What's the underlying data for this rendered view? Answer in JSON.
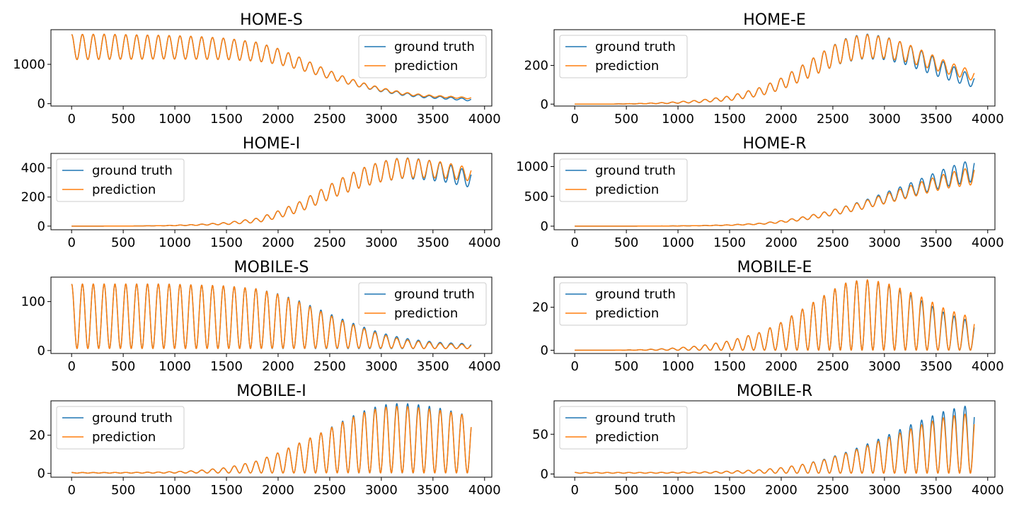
{
  "colors": {
    "ground_truth": "#1f77b4",
    "prediction": "#ff7f0e"
  },
  "chart_data": [
    {
      "type": "line",
      "title": "HOME-S",
      "xlim": [
        -200,
        4070
      ],
      "ylim": [
        -60,
        1880
      ],
      "xticks": [
        0,
        500,
        1000,
        1500,
        2000,
        2500,
        3000,
        3500,
        4000
      ],
      "yticks": [
        0,
        1000
      ],
      "legend": "top-right",
      "x": [
        0,
        300,
        600,
        900,
        1200,
        1500,
        1800,
        2000,
        2200,
        2400,
        2600,
        2800,
        3000,
        3200,
        3400,
        3600,
        3870
      ],
      "series": [
        {
          "name": "ground truth",
          "trend": [
            1440,
            1445,
            1440,
            1435,
            1420,
            1390,
            1320,
            1200,
            1030,
            830,
            640,
            480,
            350,
            250,
            185,
            150,
            95
          ],
          "amplitude": [
            320,
            320,
            310,
            300,
            290,
            270,
            240,
            200,
            160,
            120,
            90,
            65,
            48,
            38,
            32,
            30,
            28
          ]
        },
        {
          "name": "prediction",
          "trend": [
            1440,
            1445,
            1440,
            1435,
            1420,
            1390,
            1320,
            1200,
            1030,
            830,
            640,
            485,
            360,
            265,
            205,
            175,
            140
          ],
          "amplitude": [
            320,
            320,
            310,
            300,
            290,
            270,
            240,
            200,
            160,
            120,
            90,
            65,
            46,
            34,
            26,
            22,
            18
          ]
        }
      ]
    },
    {
      "type": "line",
      "title": "HOME-E",
      "xlim": [
        -200,
        4070
      ],
      "ylim": [
        -10,
        385
      ],
      "xticks": [
        0,
        500,
        1000,
        1500,
        2000,
        2500,
        3000,
        3500,
        4000
      ],
      "yticks": [
        0,
        200
      ],
      "legend": "top-left",
      "x": [
        0,
        300,
        600,
        900,
        1200,
        1500,
        1800,
        2000,
        2200,
        2400,
        2600,
        2800,
        3000,
        3200,
        3400,
        3600,
        3870
      ],
      "series": [
        {
          "name": "ground truth",
          "trend": [
            0,
            0,
            2,
            6,
            14,
            30,
            65,
            105,
            160,
            220,
            275,
            300,
            290,
            260,
            215,
            170,
            115
          ],
          "amplitude": [
            0,
            0,
            1,
            3,
            6,
            12,
            22,
            30,
            40,
            50,
            60,
            65,
            60,
            55,
            50,
            42,
            30
          ]
        },
        {
          "name": "prediction",
          "trend": [
            0,
            0,
            2,
            6,
            14,
            30,
            65,
            105,
            160,
            220,
            275,
            300,
            292,
            268,
            230,
            190,
            145
          ],
          "amplitude": [
            0,
            0,
            1,
            3,
            6,
            12,
            22,
            30,
            40,
            50,
            58,
            62,
            55,
            48,
            40,
            32,
            25
          ]
        }
      ]
    },
    {
      "type": "line",
      "title": "HOME-I",
      "xlim": [
        -200,
        4070
      ],
      "ylim": [
        -25,
        500
      ],
      "xticks": [
        0,
        500,
        1000,
        1500,
        2000,
        2500,
        3000,
        3500,
        4000
      ],
      "yticks": [
        0,
        200,
        400
      ],
      "legend": "top-left",
      "x": [
        0,
        300,
        600,
        900,
        1200,
        1500,
        1800,
        2000,
        2200,
        2400,
        2600,
        2800,
        3000,
        3200,
        3400,
        3600,
        3870
      ],
      "series": [
        {
          "name": "ground truth",
          "trend": [
            0,
            0,
            1,
            3,
            8,
            18,
            40,
            80,
            130,
            200,
            270,
            330,
            375,
            400,
            390,
            370,
            320
          ],
          "amplitude": [
            0,
            0,
            0,
            1,
            3,
            7,
            15,
            25,
            35,
            45,
            55,
            65,
            70,
            72,
            70,
            65,
            55
          ]
        },
        {
          "name": "prediction",
          "trend": [
            0,
            0,
            1,
            3,
            8,
            18,
            40,
            80,
            130,
            200,
            270,
            330,
            375,
            400,
            395,
            385,
            355
          ],
          "amplitude": [
            0,
            0,
            0,
            1,
            3,
            7,
            15,
            25,
            35,
            45,
            55,
            65,
            70,
            70,
            62,
            55,
            45
          ]
        }
      ]
    },
    {
      "type": "line",
      "title": "HOME-R",
      "xlim": [
        -200,
        4070
      ],
      "ylim": [
        -60,
        1220
      ],
      "xticks": [
        0,
        500,
        1000,
        1500,
        2000,
        2500,
        3000,
        3500,
        4000
      ],
      "yticks": [
        0,
        500,
        1000
      ],
      "legend": "top-left",
      "x": [
        0,
        300,
        600,
        900,
        1200,
        1500,
        1800,
        2000,
        2200,
        2400,
        2600,
        2800,
        3000,
        3200,
        3400,
        3600,
        3870
      ],
      "series": [
        {
          "name": "ground truth",
          "trend": [
            0,
            0,
            1,
            3,
            8,
            18,
            40,
            75,
            125,
            190,
            270,
            360,
            470,
            580,
            700,
            820,
            940
          ],
          "amplitude": [
            0,
            0,
            0,
            1,
            2,
            5,
            10,
            18,
            28,
            40,
            55,
            70,
            90,
            110,
            130,
            155,
            190
          ]
        },
        {
          "name": "prediction",
          "trend": [
            0,
            0,
            1,
            3,
            8,
            18,
            40,
            75,
            125,
            190,
            270,
            355,
            455,
            555,
            660,
            760,
            850
          ],
          "amplitude": [
            0,
            0,
            0,
            1,
            2,
            5,
            10,
            18,
            28,
            40,
            52,
            65,
            80,
            95,
            110,
            125,
            150
          ]
        }
      ]
    },
    {
      "type": "line",
      "title": "MOBILE-S",
      "xlim": [
        -200,
        4070
      ],
      "ylim": [
        -6,
        150
      ],
      "xticks": [
        0,
        500,
        1000,
        1500,
        2000,
        2500,
        3000,
        3500,
        4000
      ],
      "yticks": [
        0,
        100
      ],
      "legend": "top-right",
      "x": [
        0,
        300,
        600,
        900,
        1200,
        1500,
        1800,
        2000,
        2200,
        2400,
        2600,
        2800,
        3000,
        3200,
        3400,
        3600,
        3870
      ],
      "series": [
        {
          "name": "ground truth",
          "trend": [
            70,
            70,
            70,
            70,
            69,
            68,
            65,
            60,
            53,
            44,
            35,
            27,
            20,
            15,
            12,
            10,
            9
          ],
          "amplitude": [
            66,
            66,
            66,
            66,
            65,
            64,
            61,
            56,
            49,
            40,
            31,
            23,
            16,
            11,
            8,
            6,
            5
          ]
        },
        {
          "name": "prediction",
          "trend": [
            70,
            70,
            70,
            70,
            69,
            68,
            65,
            60,
            52,
            43,
            34,
            26,
            19,
            14,
            11,
            9,
            8
          ],
          "amplitude": [
            66,
            66,
            66,
            66,
            65,
            64,
            61,
            55,
            48,
            38,
            29,
            21,
            14,
            9,
            7,
            5,
            4
          ]
        }
      ]
    },
    {
      "type": "line",
      "title": "MOBILE-E",
      "xlim": [
        -200,
        4070
      ],
      "ylim": [
        -1.5,
        34
      ],
      "xticks": [
        0,
        500,
        1000,
        1500,
        2000,
        2500,
        3000,
        3500,
        4000
      ],
      "yticks": [
        0,
        20
      ],
      "legend": "top-left",
      "x": [
        0,
        300,
        600,
        900,
        1200,
        1500,
        1800,
        2000,
        2200,
        2400,
        2600,
        2800,
        3000,
        3200,
        3400,
        3600,
        3870
      ],
      "series": [
        {
          "name": "ground truth",
          "trend": [
            0,
            0,
            0.1,
            0.4,
            1,
            2.2,
            4.2,
            6.5,
            9.5,
            12.5,
            15.5,
            16.5,
            15.5,
            13.5,
            11,
            8.5,
            6.5
          ],
          "amplitude": [
            0,
            0,
            0.1,
            0.4,
            1,
            2.2,
            4.2,
            6.5,
            9.5,
            12.5,
            15.5,
            16.5,
            15.5,
            13.5,
            11,
            8.5,
            6.5
          ]
        },
        {
          "name": "prediction",
          "trend": [
            0,
            0,
            0.1,
            0.4,
            1,
            2.2,
            4.2,
            6.5,
            9.5,
            12.5,
            15.5,
            16.5,
            15.8,
            14,
            12,
            9.5,
            7.5
          ],
          "amplitude": [
            0,
            0,
            0.1,
            0.4,
            1,
            2.2,
            4.2,
            6.5,
            9.5,
            12.5,
            15.5,
            16.5,
            15.8,
            14,
            12,
            9.5,
            7.5
          ]
        }
      ]
    },
    {
      "type": "line",
      "title": "MOBILE-I",
      "xlim": [
        -200,
        4070
      ],
      "ylim": [
        -2,
        38
      ],
      "xticks": [
        0,
        500,
        1000,
        1500,
        2000,
        2500,
        3000,
        3500,
        4000
      ],
      "yticks": [
        0,
        20
      ],
      "legend": "top-left",
      "x": [
        0,
        300,
        600,
        900,
        1200,
        1500,
        1800,
        2000,
        2200,
        2400,
        2600,
        2800,
        3000,
        3200,
        3400,
        3600,
        3870
      ],
      "series": [
        {
          "name": "ground truth",
          "trend": [
            0.3,
            0.3,
            0.35,
            0.45,
            0.8,
            1.6,
            3.4,
            5.5,
            8,
            10.5,
            13.5,
            16.2,
            18,
            18.5,
            18,
            17,
            15
          ],
          "amplitude": [
            0.15,
            0.15,
            0.2,
            0.3,
            0.6,
            1.4,
            3.2,
            5.3,
            7.8,
            10.3,
            13.2,
            16,
            17.8,
            18.3,
            17.8,
            16.8,
            14.8
          ]
        },
        {
          "name": "prediction",
          "trend": [
            0.3,
            0.3,
            0.35,
            0.45,
            0.8,
            1.6,
            3.4,
            5.5,
            8,
            10.5,
            13.2,
            15.8,
            17.4,
            17.8,
            17.2,
            16.5,
            15
          ],
          "amplitude": [
            0.15,
            0.15,
            0.2,
            0.3,
            0.6,
            1.4,
            3.2,
            5.3,
            7.8,
            10.3,
            13,
            15.5,
            17.2,
            17.5,
            17,
            16.3,
            14.8
          ]
        }
      ]
    },
    {
      "type": "line",
      "title": "MOBILE-R",
      "xlim": [
        -200,
        4070
      ],
      "ylim": [
        -4,
        92
      ],
      "xticks": [
        0,
        500,
        1000,
        1500,
        2000,
        2500,
        3000,
        3500,
        4000
      ],
      "yticks": [
        0,
        50
      ],
      "legend": "top-left",
      "x": [
        0,
        300,
        600,
        900,
        1200,
        1500,
        1800,
        2000,
        2200,
        2400,
        2600,
        2800,
        3000,
        3200,
        3400,
        3600,
        3870
      ],
      "series": [
        {
          "name": "ground truth",
          "trend": [
            1.5,
            1.5,
            1.5,
            1.6,
            1.8,
            2.3,
            3.2,
            4.5,
            6.5,
            9.5,
            13.5,
            18.5,
            24,
            30,
            35.5,
            40.5,
            44.5
          ],
          "amplitude": [
            0.5,
            0.5,
            0.5,
            0.6,
            0.8,
            1.3,
            2.2,
            3.5,
            5.5,
            8.5,
            12.5,
            17.5,
            23,
            29,
            34.5,
            39.5,
            43.5
          ]
        },
        {
          "name": "prediction",
          "trend": [
            1.5,
            1.5,
            1.5,
            1.6,
            1.8,
            2.3,
            3.2,
            4.5,
            6.5,
            9.2,
            13,
            17.5,
            22.5,
            27.5,
            32.5,
            36.5,
            39
          ],
          "amplitude": [
            0.5,
            0.5,
            0.5,
            0.6,
            0.8,
            1.3,
            2.2,
            3.5,
            5.5,
            8.2,
            12,
            16.5,
            21.5,
            26.5,
            31.5,
            35.5,
            38
          ]
        }
      ]
    }
  ]
}
